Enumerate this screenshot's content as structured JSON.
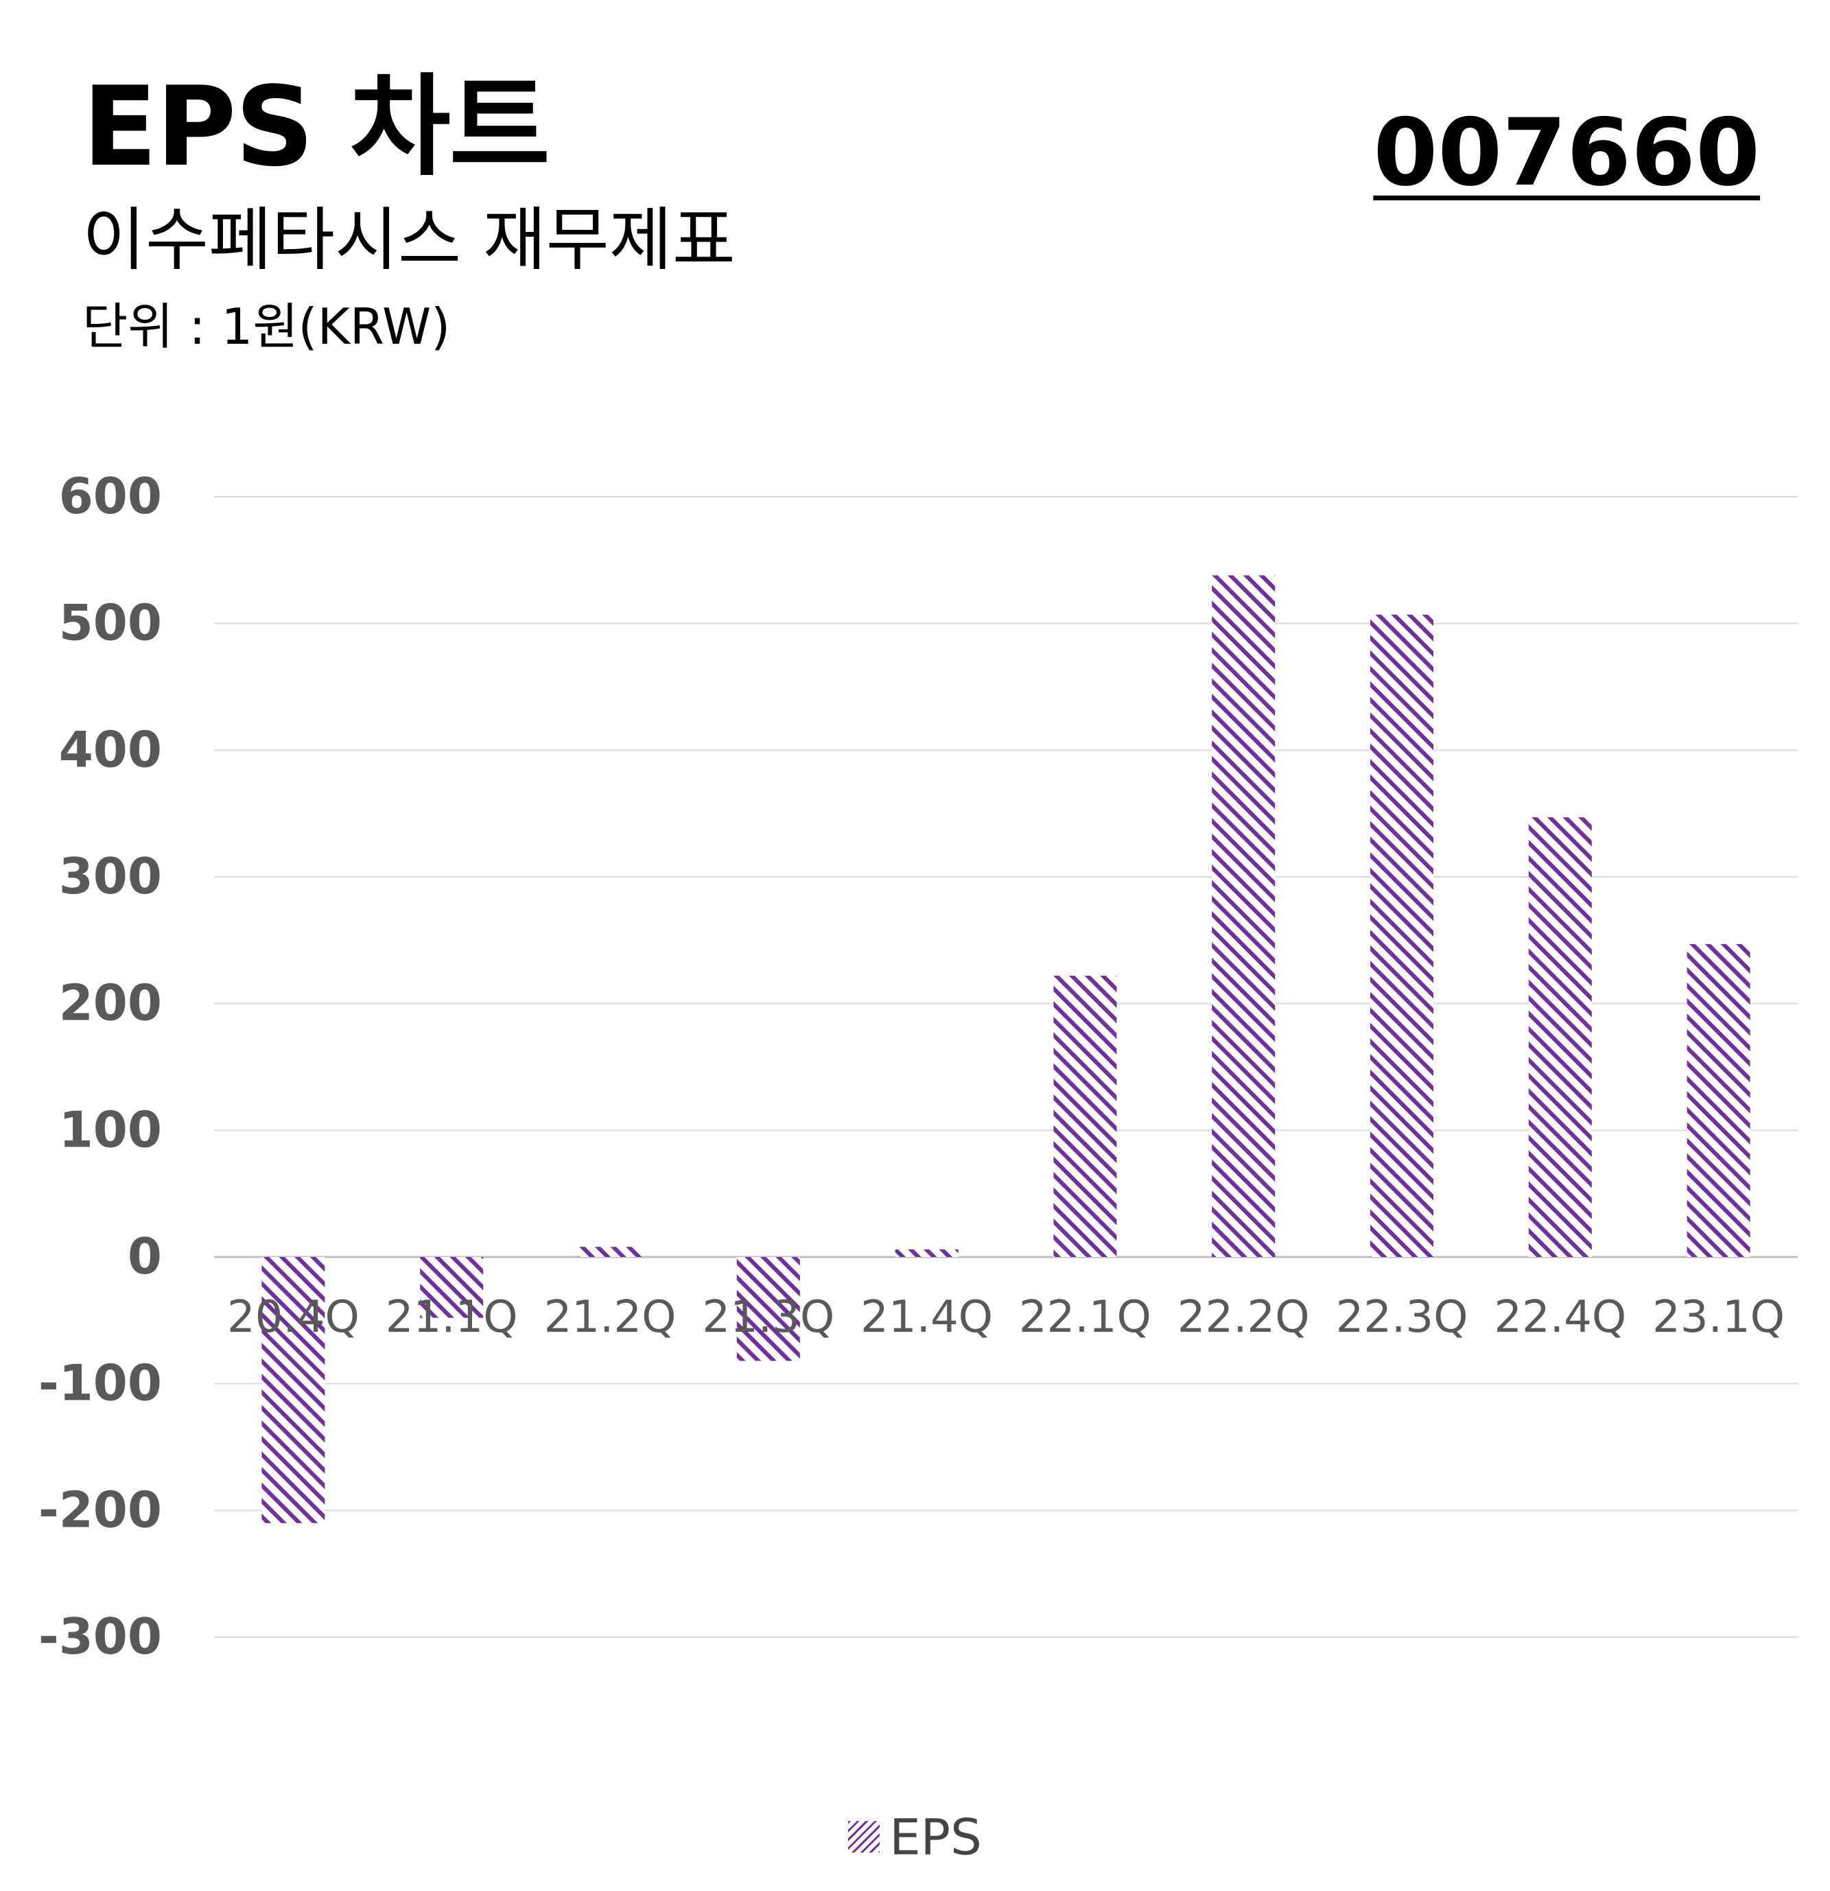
{
  "header": {
    "title": "EPS 차트",
    "subtitle": "이수페타시스 재무제표",
    "unit": "단위 : 1원(KRW)",
    "code": "007660"
  },
  "colors": {
    "bar": "#7030A0",
    "grid": "#d9d9d9",
    "axis_text": "#595959"
  },
  "chart_data": {
    "type": "bar",
    "categories": [
      "20.4Q",
      "21.1Q",
      "21.2Q",
      "21.3Q",
      "21.4Q",
      "22.1Q",
      "22.2Q",
      "22.3Q",
      "22.4Q",
      "23.1Q"
    ],
    "series": [
      {
        "name": "EPS",
        "values": [
          -210,
          -48,
          8,
          -82,
          6,
          222,
          538,
          507,
          347,
          247
        ]
      }
    ],
    "ylim": [
      -300,
      600
    ],
    "yticks": [
      600,
      500,
      400,
      300,
      200,
      100,
      0,
      -100,
      -200,
      -300
    ],
    "grid": true,
    "legend": "bottom",
    "pattern": "diagonal-hatch"
  }
}
